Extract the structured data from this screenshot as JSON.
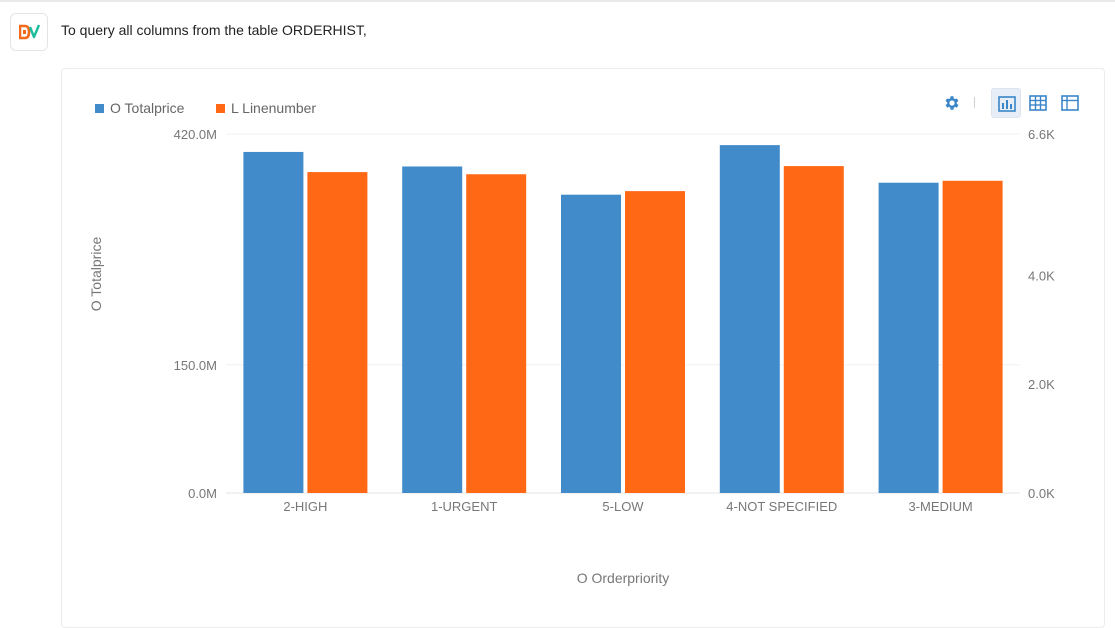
{
  "message": "To query all columns from the table ORDERHIST,",
  "logo": {
    "text": "DV",
    "colors": [
      "#f26b1d",
      "#1abc9c"
    ]
  },
  "toolbar": {
    "icons": [
      "gear-icon",
      "bar-chart-icon",
      "table-grid-icon",
      "pivot-table-icon"
    ],
    "active": "bar-chart-icon",
    "color": "#3a86c8"
  },
  "chart_data": {
    "type": "bar",
    "categories": [
      "2-HIGH",
      "1-URGENT",
      "5-LOW",
      "4-NOT SPECIFIED",
      "3-MEDIUM"
    ],
    "series": [
      {
        "name": "O Totalprice",
        "axis": "left",
        "color": "#428bca",
        "values": [
          399000000,
          382000000,
          349000000,
          407000000,
          363000000
        ]
      },
      {
        "name": "L Linenumber",
        "axis": "right",
        "color": "#ff6916",
        "values": [
          5900,
          5860,
          5550,
          6010,
          5740
        ]
      }
    ],
    "xlabel": "O Orderpriority",
    "ylabel": "O Totalprice",
    "y_left": {
      "min": 0,
      "max": 420000000,
      "ticks": [
        "0.0M",
        "150.0M",
        "420.0M"
      ],
      "tick_values": [
        0,
        150000000,
        420000000
      ]
    },
    "y_right": {
      "min": 0,
      "max": 6600,
      "ticks": [
        "0.0K",
        "2.0K",
        "4.0K",
        "6.6K"
      ],
      "tick_values": [
        0,
        2000,
        4000,
        6600
      ]
    },
    "legend": "top-left",
    "grid": true
  }
}
